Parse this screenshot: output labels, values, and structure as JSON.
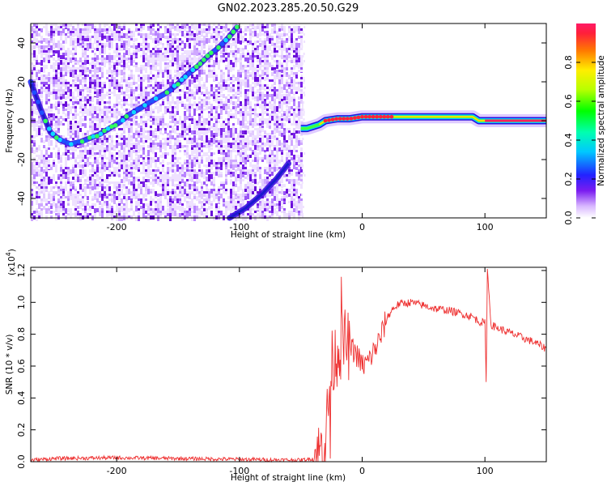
{
  "title": "GN02.2023.285.20.50.G29",
  "colorbar": {
    "label": "Normalized spectral amplitude",
    "ticks": [
      "0.0",
      "0.2",
      "0.4",
      "0.6",
      "0.8"
    ],
    "range": [
      0,
      1
    ]
  },
  "chart_data": [
    {
      "type": "heatmap",
      "xlabel": "Height of straight line (km)",
      "ylabel": "Frequency (Hz)",
      "xlim": [
        -270,
        150
      ],
      "ylim": [
        -50,
        50
      ],
      "xticks": [
        "-200",
        "-100",
        "0",
        "100"
      ],
      "yticks": [
        "-40",
        "-20",
        "0",
        "20",
        "40"
      ],
      "noise_region_x": [
        -270,
        -50
      ],
      "tracks": [
        {
          "name": "",
          "x": [
            -270,
            -262,
            -254,
            -246,
            -238,
            -230,
            -222,
            -214,
            -206,
            -198,
            -190,
            -182,
            -174,
            -166,
            -158,
            -150,
            -142,
            -134,
            -126,
            -118,
            -110,
            -102
          ],
          "y": [
            20,
            6,
            -6,
            -10,
            -12,
            -11,
            -9,
            -7,
            -4,
            -1,
            3,
            6,
            9,
            12,
            15,
            19,
            24,
            28,
            33,
            37,
            42,
            48
          ]
        },
        {
          "name": "",
          "x": [
            -108,
            -95,
            -82,
            -70,
            -60
          ],
          "y": [
            -50,
            -45,
            -38,
            -30,
            -22
          ]
        },
        {
          "name": "",
          "x": [
            -50,
            -45,
            -40,
            -35,
            -30,
            -20,
            -10,
            0,
            20,
            40,
            60,
            80,
            90,
            95,
            100,
            150
          ],
          "y": [
            -4,
            -4,
            -3,
            -2,
            0,
            1,
            1,
            2,
            2,
            2,
            2,
            2,
            2,
            0,
            0,
            0
          ]
        }
      ]
    },
    {
      "type": "line",
      "xlabel": "Height of straight line (km)",
      "ylabel": "SNR (10 * v/v)",
      "multiplier": "(x10",
      "multiplier_exp": "4",
      "multiplier_close": ")",
      "xlim": [
        -270,
        150
      ],
      "ylim": [
        0,
        1.22
      ],
      "xticks": [
        "-200",
        "-100",
        "0",
        "100"
      ],
      "yticks": [
        "0.0",
        "0.2",
        "0.4",
        "0.6",
        "0.8",
        "1.0",
        "1.2"
      ],
      "color": "#ee3030",
      "series": [
        {
          "name": "",
          "x": [
            -270,
            -250,
            -200,
            -150,
            -100,
            -50,
            -40,
            -35,
            -30,
            -27,
            -25,
            -20,
            -15,
            -10,
            -5,
            0,
            5,
            10,
            15,
            20,
            25,
            30,
            40,
            50,
            60,
            70,
            80,
            90,
            95,
            100,
            101,
            102,
            105,
            110,
            120,
            130,
            140,
            150
          ],
          "y": [
            0.01,
            0.02,
            0.025,
            0.02,
            0.015,
            0.01,
            0.02,
            0.05,
            0.15,
            0.4,
            0.6,
            0.7,
            0.75,
            0.72,
            0.68,
            0.6,
            0.63,
            0.7,
            0.78,
            0.9,
            0.96,
            0.99,
            1.0,
            0.98,
            0.96,
            0.95,
            0.93,
            0.91,
            0.88,
            0.87,
            0.5,
            1.2,
            0.86,
            0.84,
            0.81,
            0.78,
            0.75,
            0.71
          ]
        }
      ]
    }
  ]
}
